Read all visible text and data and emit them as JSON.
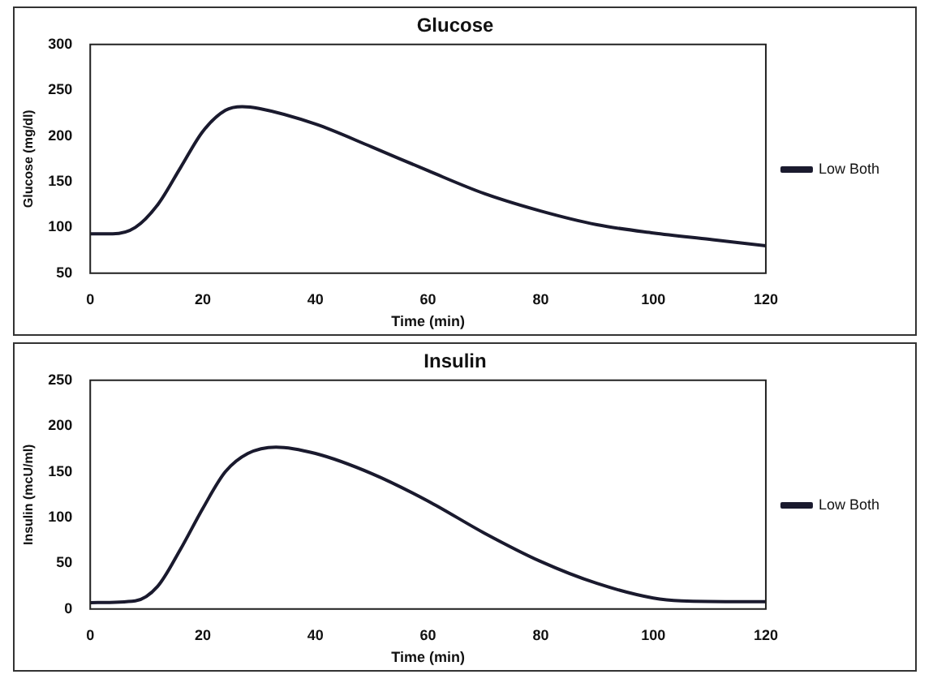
{
  "chart_data": [
    {
      "type": "line",
      "title": "Glucose",
      "xlabel": "Time (min)",
      "ylabel": "Glucose (mg/dl)",
      "xlim": [
        0,
        120
      ],
      "xticks": [
        0,
        20,
        40,
        60,
        80,
        100,
        120
      ],
      "ylim": [
        50,
        300
      ],
      "yticks": [
        50,
        100,
        150,
        200,
        250,
        300
      ],
      "grid": false,
      "legend": "right",
      "marker": "none",
      "line_style": "solid",
      "x": [
        0,
        4,
        8,
        12,
        16,
        20,
        24,
        27,
        30,
        40,
        50,
        60,
        70,
        80,
        90,
        100,
        110,
        120
      ],
      "series": [
        {
          "name": "Low Both",
          "color": "#1a1a2e",
          "values": [
            93,
            93,
            100,
            125,
            165,
            205,
            228,
            232,
            230,
            213,
            188,
            162,
            137,
            118,
            103,
            94,
            87,
            80
          ]
        }
      ]
    },
    {
      "type": "line",
      "title": "Insulin",
      "xlabel": "Time (min)",
      "ylabel": "Insulin (mcU/ml)",
      "xlim": [
        0,
        120
      ],
      "xticks": [
        0,
        20,
        40,
        60,
        80,
        100,
        120
      ],
      "ylim": [
        0,
        250
      ],
      "yticks": [
        0,
        50,
        100,
        150,
        200,
        250
      ],
      "grid": false,
      "legend": "right",
      "marker": "none",
      "line_style": "solid",
      "x": [
        0,
        8,
        12,
        16,
        20,
        24,
        28,
        33,
        40,
        50,
        60,
        70,
        80,
        90,
        100,
        105,
        120
      ],
      "series": [
        {
          "name": "Low Both",
          "color": "#1a1a2e",
          "values": [
            7,
            9,
            25,
            65,
            110,
            150,
            170,
            177,
            170,
            148,
            118,
            83,
            52,
            28,
            12,
            9,
            8
          ]
        }
      ]
    }
  ]
}
